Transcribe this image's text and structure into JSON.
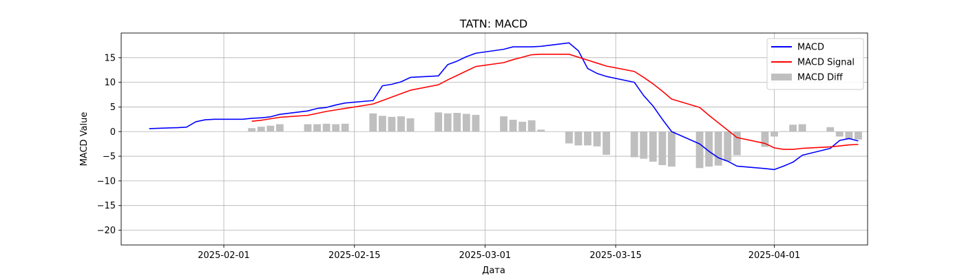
{
  "chart_data": {
    "type": "line",
    "title": "TATN: MACD",
    "xlabel": "Дата",
    "ylabel": "MACD Value",
    "x_ticks": [
      "2025-02-01",
      "2025-02-15",
      "2025-03-01",
      "2025-03-15",
      "2025-04-01"
    ],
    "y_ticks": [
      15,
      10,
      5,
      0,
      -5,
      -10,
      -15,
      -20
    ],
    "xlim": [
      "2025-01-21",
      "2025-04-11"
    ],
    "ylim": [
      -23,
      20
    ],
    "grid": true,
    "legend_position": "top-right",
    "series": [
      {
        "name": "MACD",
        "type": "line",
        "color": "#0000ff",
        "x": [
          "2025-01-24",
          "2025-01-27",
          "2025-01-28",
          "2025-01-29",
          "2025-01-30",
          "2025-01-31",
          "2025-02-03",
          "2025-02-04",
          "2025-02-05",
          "2025-02-06",
          "2025-02-07",
          "2025-02-10",
          "2025-02-11",
          "2025-02-12",
          "2025-02-13",
          "2025-02-14",
          "2025-02-17",
          "2025-02-18",
          "2025-02-19",
          "2025-02-20",
          "2025-02-21",
          "2025-02-24",
          "2025-02-25",
          "2025-02-26",
          "2025-02-27",
          "2025-02-28",
          "2025-03-03",
          "2025-03-04",
          "2025-03-05",
          "2025-03-06",
          "2025-03-07",
          "2025-03-10",
          "2025-03-11",
          "2025-03-12",
          "2025-03-13",
          "2025-03-14",
          "2025-03-17",
          "2025-03-18",
          "2025-03-19",
          "2025-03-20",
          "2025-03-21",
          "2025-03-24",
          "2025-03-25",
          "2025-03-26",
          "2025-03-27",
          "2025-03-28",
          "2025-03-31",
          "2025-04-01",
          "2025-04-02",
          "2025-04-03",
          "2025-04-04",
          "2025-04-07",
          "2025-04-08",
          "2025-04-09",
          "2025-04-10"
        ],
        "y": [
          0.6,
          0.8,
          0.9,
          2.0,
          2.4,
          2.5,
          2.5,
          2.7,
          2.8,
          3.0,
          3.5,
          4.2,
          4.7,
          4.9,
          5.4,
          5.8,
          6.3,
          9.3,
          9.6,
          10.1,
          11.0,
          11.3,
          13.6,
          14.3,
          15.2,
          15.9,
          16.7,
          17.2,
          17.2,
          17.2,
          17.3,
          18.0,
          16.4,
          12.8,
          11.8,
          11.2,
          10.0,
          7.3,
          5.2,
          2.5,
          0.0,
          -2.5,
          -4.0,
          -5.3,
          -6.0,
          -7.0,
          -7.5,
          -7.7,
          -7.0,
          -6.2,
          -4.8,
          -3.4,
          -1.8,
          -1.4,
          -1.9
        ]
      },
      {
        "name": "MACD Signal",
        "type": "line",
        "color": "#ff0000",
        "x": [
          "2025-02-04",
          "2025-02-05",
          "2025-02-06",
          "2025-02-07",
          "2025-02-10",
          "2025-02-11",
          "2025-02-12",
          "2025-02-13",
          "2025-02-14",
          "2025-02-17",
          "2025-02-18",
          "2025-02-19",
          "2025-02-20",
          "2025-02-21",
          "2025-02-24",
          "2025-02-25",
          "2025-02-26",
          "2025-02-27",
          "2025-02-28",
          "2025-03-03",
          "2025-03-04",
          "2025-03-05",
          "2025-03-06",
          "2025-03-07",
          "2025-03-10",
          "2025-03-11",
          "2025-03-12",
          "2025-03-13",
          "2025-03-14",
          "2025-03-17",
          "2025-03-18",
          "2025-03-19",
          "2025-03-20",
          "2025-03-21",
          "2025-03-24",
          "2025-03-25",
          "2025-03-26",
          "2025-03-27",
          "2025-03-28",
          "2025-03-31",
          "2025-04-01",
          "2025-04-02",
          "2025-04-03",
          "2025-04-04",
          "2025-04-07",
          "2025-04-08",
          "2025-04-09",
          "2025-04-10"
        ],
        "y": [
          2.1,
          2.3,
          2.6,
          2.9,
          3.3,
          3.7,
          4.1,
          4.4,
          4.7,
          5.6,
          6.3,
          7.0,
          7.7,
          8.4,
          9.5,
          10.5,
          11.4,
          12.3,
          13.2,
          14.0,
          14.6,
          15.1,
          15.6,
          15.7,
          15.7,
          15.1,
          14.5,
          13.9,
          13.3,
          12.2,
          11.0,
          9.7,
          8.2,
          6.6,
          4.9,
          3.3,
          1.8,
          0.3,
          -1.2,
          -2.4,
          -3.3,
          -3.6,
          -3.6,
          -3.4,
          -3.1,
          -2.9,
          -2.7,
          -2.6
        ]
      },
      {
        "name": "MACD Diff",
        "type": "bar",
        "color": "#bfbfbf",
        "x": [
          "2025-02-04",
          "2025-02-05",
          "2025-02-06",
          "2025-02-07",
          "2025-02-10",
          "2025-02-11",
          "2025-02-12",
          "2025-02-13",
          "2025-02-14",
          "2025-02-17",
          "2025-02-18",
          "2025-02-19",
          "2025-02-20",
          "2025-02-21",
          "2025-02-24",
          "2025-02-25",
          "2025-02-26",
          "2025-02-27",
          "2025-02-28",
          "2025-03-03",
          "2025-03-04",
          "2025-03-05",
          "2025-03-06",
          "2025-03-07",
          "2025-03-10",
          "2025-03-11",
          "2025-03-12",
          "2025-03-13",
          "2025-03-14",
          "2025-03-17",
          "2025-03-18",
          "2025-03-19",
          "2025-03-20",
          "2025-03-21",
          "2025-03-24",
          "2025-03-25",
          "2025-03-26",
          "2025-03-27",
          "2025-03-28",
          "2025-03-31",
          "2025-04-01",
          "2025-04-02",
          "2025-04-03",
          "2025-04-04",
          "2025-04-07",
          "2025-04-08",
          "2025-04-09",
          "2025-04-10"
        ],
        "y": [
          0.7,
          1.0,
          1.2,
          1.5,
          1.5,
          1.5,
          1.6,
          1.5,
          1.6,
          3.7,
          3.2,
          3.0,
          3.1,
          2.7,
          3.9,
          3.7,
          3.8,
          3.6,
          3.4,
          3.1,
          2.4,
          2.0,
          2.3,
          0.4,
          -2.4,
          -2.8,
          -2.8,
          -3.0,
          -4.7,
          -5.2,
          -5.5,
          -6.1,
          -6.8,
          -7.1,
          -7.4,
          -7.1,
          -6.9,
          -6.0,
          -4.8,
          -3.1,
          -1.0,
          0.1,
          1.4,
          1.5,
          0.9,
          -1.0,
          -1.6,
          -1.6
        ]
      }
    ]
  }
}
